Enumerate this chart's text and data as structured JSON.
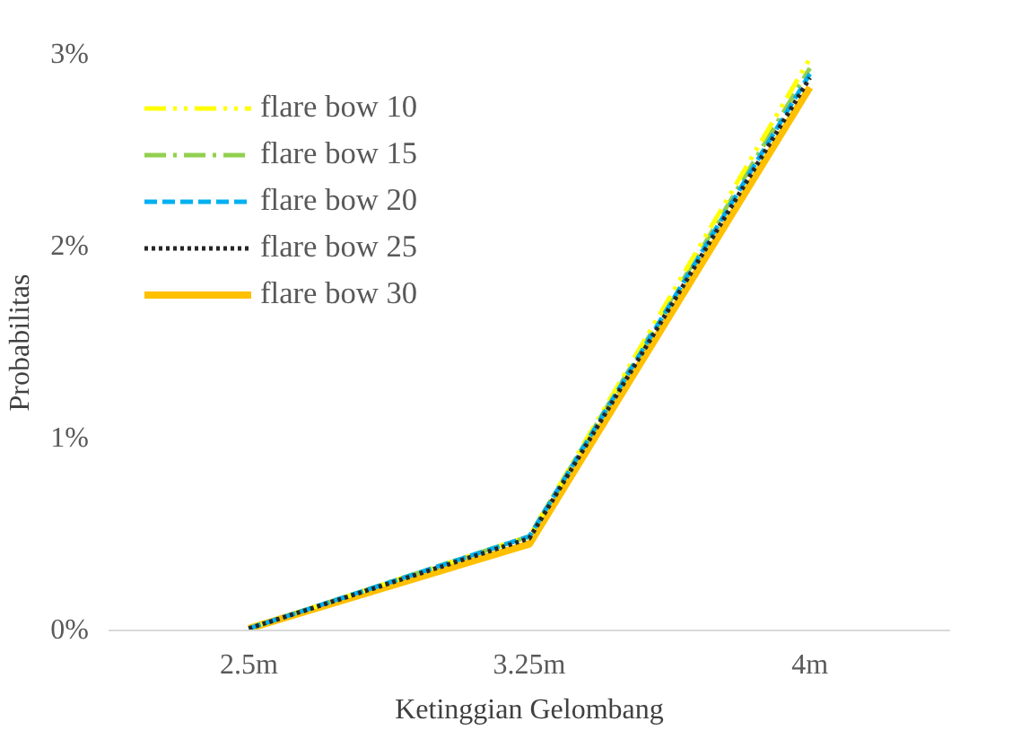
{
  "chart_data": {
    "type": "line",
    "xlabel": "Ketinggian Gelombang",
    "ylabel": "Probabilitas",
    "categories": [
      "2.5m",
      "3.25m",
      "4m"
    ],
    "ylim": [
      0,
      3
    ],
    "yticks": [
      {
        "value": 0,
        "label": "0%"
      },
      {
        "value": 1,
        "label": "1%"
      },
      {
        "value": 2,
        "label": "2%"
      },
      {
        "value": 3,
        "label": "3%"
      }
    ],
    "grid": false,
    "legend": "top left",
    "series": [
      {
        "name": "flare bow 10",
        "color": "#ffff00",
        "line_style": "dashdotdot",
        "values": [
          0.01,
          0.49,
          2.98
        ]
      },
      {
        "name": "flare bow 15",
        "color": "#92d050",
        "line_style": "dashdot",
        "values": [
          0.01,
          0.49,
          2.93
        ]
      },
      {
        "name": "flare bow 20",
        "color": "#00b0f0",
        "line_style": "dashed",
        "values": [
          0.01,
          0.49,
          2.9
        ]
      },
      {
        "name": "flare bow 25",
        "color": "#262626",
        "line_style": "dotted",
        "values": [
          0.01,
          0.48,
          2.88
        ]
      },
      {
        "name": "flare bow 30",
        "color": "#ffc000",
        "line_style": "solid",
        "values": [
          0.01,
          0.45,
          2.83
        ]
      }
    ]
  }
}
